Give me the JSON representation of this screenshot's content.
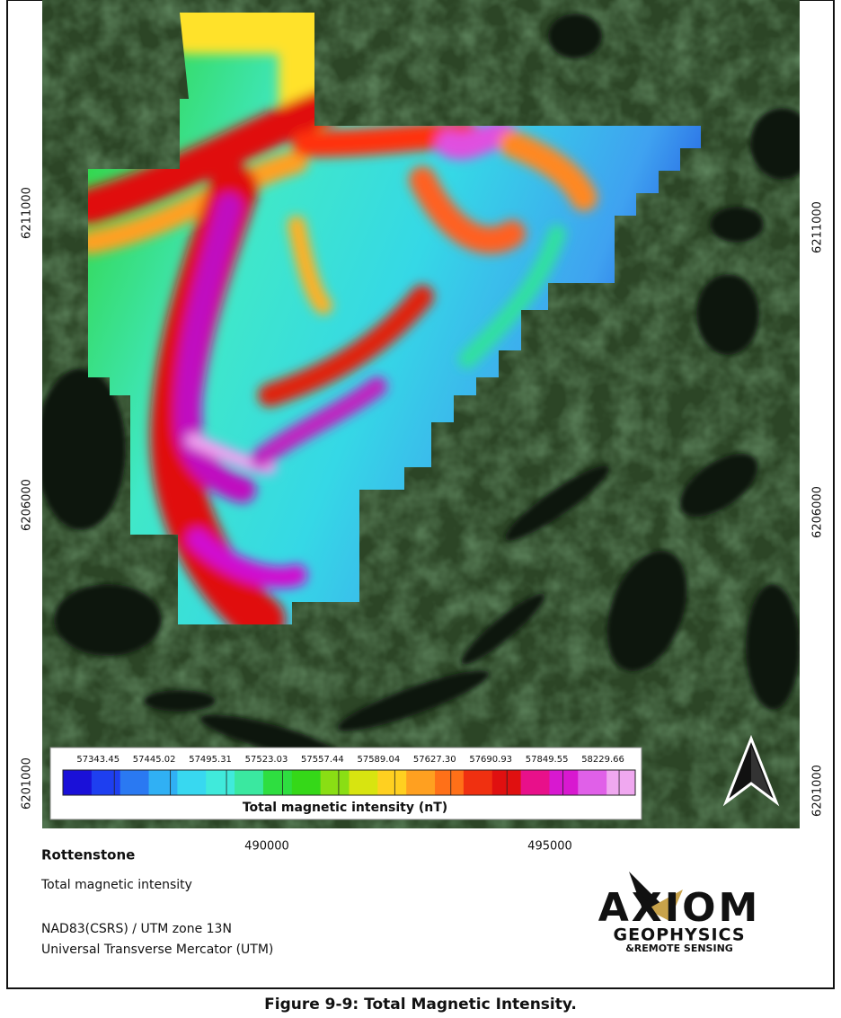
{
  "map": {
    "y_labels": [
      "6211000",
      "6206000",
      "6201000"
    ],
    "x_labels": [
      "490000",
      "495000"
    ],
    "legend": {
      "labels": [
        "57343.45",
        "57445.02",
        "57495.31",
        "57523.03",
        "57557.44",
        "57589.04",
        "57627.30",
        "57690.93",
        "57849.55",
        "58229.66"
      ],
      "title": "Total magnetic intensity (nT)"
    }
  },
  "info": {
    "title": "Rottenstone",
    "subtitle": "Total magnetic intensity",
    "crs": [
      "NAD83(CSRS) / UTM zone 13N",
      "Universal Transverse Mercator (UTM)"
    ]
  },
  "logo": {
    "name": "AXIOM",
    "line1": "GEOPHYSICS",
    "line2": "&REMOTE SENSING"
  },
  "caption": "Figure 9-9: Total Magnetic Intensity."
}
